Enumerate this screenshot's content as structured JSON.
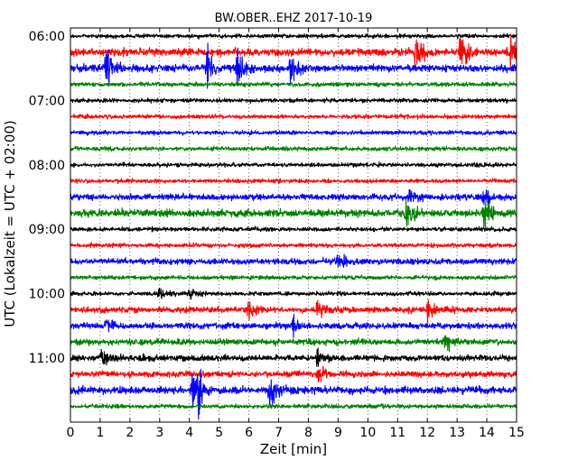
{
  "chart_data": {
    "type": "line",
    "title": "BW.OBER..EHZ 2017-10-19",
    "xlabel": "Zeit  [min]",
    "ylabel": "UTC (Lokalzeit = UTC + 02:00)",
    "xlim": [
      0,
      15
    ],
    "x_ticks": [
      "0",
      "1",
      "2",
      "3",
      "4",
      "5",
      "6",
      "7",
      "8",
      "9",
      "10",
      "11",
      "12",
      "13",
      "14",
      "15"
    ],
    "y_tick_labels": [
      "06:00",
      "07:00",
      "08:00",
      "09:00",
      "10:00",
      "11:00"
    ],
    "grid": "vertical dotted at each minute",
    "colors": [
      "#000000",
      "#ff0000",
      "#0000ff",
      "#008000"
    ],
    "traces": [
      {
        "start": "06:00",
        "color": "#000000",
        "amplitude": "low"
      },
      {
        "start": "06:15",
        "color": "#ff0000",
        "amplitude": "high",
        "events_min": [
          11.6,
          13.1,
          14.8
        ]
      },
      {
        "start": "06:30",
        "color": "#0000ff",
        "amplitude": "high",
        "events_min": [
          1.2,
          4.6,
          5.6,
          7.4
        ]
      },
      {
        "start": "06:45",
        "color": "#008000",
        "amplitude": "low"
      },
      {
        "start": "07:00",
        "color": "#000000",
        "amplitude": "low"
      },
      {
        "start": "07:15",
        "color": "#ff0000",
        "amplitude": "low"
      },
      {
        "start": "07:30",
        "color": "#0000ff",
        "amplitude": "low"
      },
      {
        "start": "07:45",
        "color": "#008000",
        "amplitude": "low"
      },
      {
        "start": "08:00",
        "color": "#000000",
        "amplitude": "low"
      },
      {
        "start": "08:15",
        "color": "#ff0000",
        "amplitude": "low"
      },
      {
        "start": "08:30",
        "color": "#0000ff",
        "amplitude": "medium",
        "events_min": [
          11.4,
          13.9
        ]
      },
      {
        "start": "08:45",
        "color": "#008000",
        "amplitude": "high",
        "events_min": [
          11.3,
          13.9
        ]
      },
      {
        "start": "09:00",
        "color": "#000000",
        "amplitude": "low"
      },
      {
        "start": "09:15",
        "color": "#ff0000",
        "amplitude": "low"
      },
      {
        "start": "09:30",
        "color": "#0000ff",
        "amplitude": "medium",
        "events_min": [
          9.0
        ]
      },
      {
        "start": "09:45",
        "color": "#008000",
        "amplitude": "low"
      },
      {
        "start": "10:00",
        "color": "#000000",
        "amplitude": "low",
        "events_min": [
          3.0,
          4.0
        ]
      },
      {
        "start": "10:15",
        "color": "#ff0000",
        "amplitude": "medium",
        "events_min": [
          6.0,
          8.3,
          12.0
        ]
      },
      {
        "start": "10:30",
        "color": "#0000ff",
        "amplitude": "medium",
        "events_min": [
          1.2,
          7.5
        ]
      },
      {
        "start": "10:45",
        "color": "#008000",
        "amplitude": "medium",
        "events_min": [
          12.6
        ]
      },
      {
        "start": "11:00",
        "color": "#000000",
        "amplitude": "medium",
        "events_min": [
          1.0,
          8.3
        ]
      },
      {
        "start": "11:15",
        "color": "#ff0000",
        "amplitude": "medium",
        "events_min": [
          8.3
        ]
      },
      {
        "start": "11:30",
        "color": "#0000ff",
        "amplitude": "high",
        "events_min": [
          4.1,
          4.3,
          6.7
        ]
      },
      {
        "start": "11:45",
        "color": "#008000",
        "amplitude": "low"
      }
    ]
  }
}
